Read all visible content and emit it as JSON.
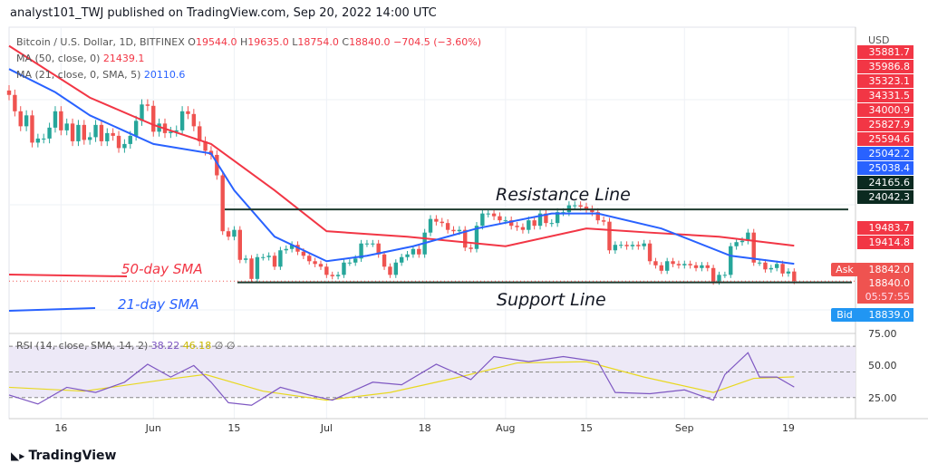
{
  "header": {
    "published": "analyst101_TWJ published on TradingView.com, Sep 20, 2022 14:00 UTC"
  },
  "legend": {
    "symbol": "Bitcoin / U.S. Dollar, 1D, BITFINEX",
    "open_label": "O",
    "open": "19544.0",
    "high_label": "H",
    "high": "19635.0",
    "low_label": "L",
    "low": "18754.0",
    "close_label": "C",
    "close": "18840.0",
    "change": "−704.5 (−3.60%)",
    "ma50_label": "MA (50, close, 0)",
    "ma50_value": "21439.1",
    "ma21_label": "MA (21, close, 0, SMA, 5)",
    "ma21_value": "20110.6",
    "rsi_label": "RSI (14, close, SMA, 14, 2)",
    "rsi_value": "38.22",
    "rsi_sma_value": "46.18",
    "rsi_extra": "∅  ∅"
  },
  "price_axis": {
    "currency": "USD",
    "labels": [
      {
        "text": "35881.7",
        "color": "#f23645"
      },
      {
        "text": "35986.8",
        "color": "#f23645"
      },
      {
        "text": "35323.1",
        "color": "#f23645"
      },
      {
        "text": "34331.5",
        "color": "#f23645"
      },
      {
        "text": "34000.9",
        "color": "#f23645"
      },
      {
        "text": "25827.9",
        "color": "#f23645"
      },
      {
        "text": "25594.6",
        "color": "#f23645"
      },
      {
        "text": "25042.2",
        "color": "#2962ff"
      },
      {
        "text": "25038.4",
        "color": "#2962ff"
      },
      {
        "text": "24165.6",
        "color": "#0b2a20"
      },
      {
        "text": "24042.3",
        "color": "#0b2a20"
      },
      {
        "text": "19483.7",
        "color": "#f23645"
      },
      {
        "text": "19414.8",
        "color": "#f23645"
      }
    ],
    "ask_label": "Ask",
    "ask": "18842.0",
    "last": "18840.0",
    "countdown": "05:57:55",
    "bid_label": "Bid",
    "bid": "18839.0",
    "rsi_ticks": [
      "75.00",
      "50.00",
      "25.00"
    ]
  },
  "annotations": {
    "resistance": "Resistance Line",
    "support": "Support Line",
    "sma50": "50-day SMA",
    "sma21": "21-day SMA"
  },
  "footer": {
    "brand": "TradingView"
  },
  "colors": {
    "up": "#26a69a",
    "down": "#ef5350",
    "ma50": "#f23645",
    "ma21": "#2962ff",
    "rsi": "#7e57c2",
    "rsi_sma": "#f5e642",
    "rsi_band": "#ede9f7"
  },
  "chart_data": {
    "type": "candlestick",
    "start_date": "2022-05-07",
    "x_ticks": [
      {
        "date": "2022-05-16",
        "label": "16"
      },
      {
        "date": "2022-06-01",
        "label": "Jun"
      },
      {
        "date": "2022-06-15",
        "label": "15"
      },
      {
        "date": "2022-07-01",
        "label": "Jul"
      },
      {
        "date": "2022-07-18",
        "label": "18"
      },
      {
        "date": "2022-08-01",
        "label": "Aug"
      },
      {
        "date": "2022-08-15",
        "label": "15"
      },
      {
        "date": "2022-09-01",
        "label": "Sep"
      },
      {
        "date": "2022-09-19",
        "label": "19"
      }
    ],
    "ylim": [
      15000,
      37470
    ],
    "closes": [
      32500,
      31300,
      30200,
      31000,
      29000,
      29300,
      29300,
      30100,
      31300,
      29900,
      30400,
      29100,
      30300,
      29200,
      29400,
      30300,
      29100,
      29700,
      29500,
      28600,
      28900,
      29500,
      30600,
      31800,
      31700,
      29800,
      30400,
      29700,
      29800,
      29900,
      31300,
      31100,
      30200,
      29100,
      28400,
      28100,
      26600,
      22500,
      22100,
      22600,
      20400,
      20500,
      19000,
      20600,
      20600,
      20700,
      19900,
      21100,
      21200,
      21500,
      21000,
      20700,
      20300,
      20100,
      19900,
      19300,
      19200,
      19300,
      20200,
      20200,
      20500,
      21600,
      21600,
      21600,
      20800,
      19900,
      19300,
      20200,
      20600,
      20800,
      21200,
      20800,
      22400,
      23400,
      23200,
      23100,
      22600,
      22500,
      22600,
      21300,
      21200,
      22900,
      23800,
      23800,
      23600,
      23300,
      23300,
      22900,
      22800,
      22600,
      23300,
      22900,
      23800,
      23100,
      23100,
      23900,
      23900,
      24400,
      24400,
      24300,
      24100,
      23900,
      23300,
      23200,
      21100,
      21500,
      21500,
      21400,
      21500,
      21400,
      21600,
      20300,
      20000,
      19600,
      20300,
      20100,
      20000,
      20100,
      20000,
      19800,
      20000,
      19800,
      18800,
      19300,
      19300,
      21400,
      21700,
      21800,
      22400,
      20200,
      20200,
      19700,
      19800,
      20100,
      19400,
      19544,
      18840
    ],
    "ma50": [
      [
        "2022-05-07",
        36100
      ],
      [
        "2022-05-21",
        32300
      ],
      [
        "2022-06-01",
        30300
      ],
      [
        "2022-06-11",
        28900
      ],
      [
        "2022-06-22",
        25500
      ],
      [
        "2022-07-01",
        22500
      ],
      [
        "2022-07-15",
        22100
      ],
      [
        "2022-08-01",
        21400
      ],
      [
        "2022-08-15",
        22700
      ],
      [
        "2022-08-26",
        22400
      ],
      [
        "2022-09-07",
        22100
      ],
      [
        "2022-09-20",
        21439.1
      ]
    ],
    "ma21": [
      [
        "2022-05-07",
        34400
      ],
      [
        "2022-05-15",
        32700
      ],
      [
        "2022-05-21",
        31000
      ],
      [
        "2022-06-01",
        28900
      ],
      [
        "2022-06-11",
        28200
      ],
      [
        "2022-06-15",
        25500
      ],
      [
        "2022-06-22",
        22100
      ],
      [
        "2022-07-01",
        20300
      ],
      [
        "2022-07-08",
        20700
      ],
      [
        "2022-07-16",
        21400
      ],
      [
        "2022-07-27",
        22700
      ],
      [
        "2022-08-09",
        23800
      ],
      [
        "2022-08-17",
        23800
      ],
      [
        "2022-08-28",
        22700
      ],
      [
        "2022-09-09",
        20700
      ],
      [
        "2022-09-20",
        20110.6
      ]
    ],
    "rsi_ylim": [
      15,
      80
    ],
    "rsi": [
      [
        "2022-05-07",
        32
      ],
      [
        "2022-05-12",
        25
      ],
      [
        "2022-05-17",
        38
      ],
      [
        "2022-05-22",
        34
      ],
      [
        "2022-05-27",
        42
      ],
      [
        "2022-05-31",
        56
      ],
      [
        "2022-06-04",
        46
      ],
      [
        "2022-06-08",
        55
      ],
      [
        "2022-06-11",
        42
      ],
      [
        "2022-06-14",
        26
      ],
      [
        "2022-06-18",
        24
      ],
      [
        "2022-06-23",
        38
      ],
      [
        "2022-06-28",
        32
      ],
      [
        "2022-07-02",
        28
      ],
      [
        "2022-07-09",
        42
      ],
      [
        "2022-07-14",
        40
      ],
      [
        "2022-07-20",
        56
      ],
      [
        "2022-07-26",
        44
      ],
      [
        "2022-07-30",
        62
      ],
      [
        "2022-08-05",
        58
      ],
      [
        "2022-08-11",
        62
      ],
      [
        "2022-08-17",
        58
      ],
      [
        "2022-08-20",
        34
      ],
      [
        "2022-08-26",
        33
      ],
      [
        "2022-09-01",
        36
      ],
      [
        "2022-09-06",
        28
      ],
      [
        "2022-09-08",
        48
      ],
      [
        "2022-09-12",
        65
      ],
      [
        "2022-09-14",
        46
      ],
      [
        "2022-09-17",
        46
      ],
      [
        "2022-09-20",
        38.22
      ]
    ],
    "rsi_sma": [
      [
        "2022-05-07",
        38
      ],
      [
        "2022-05-20",
        35
      ],
      [
        "2022-06-03",
        44
      ],
      [
        "2022-06-10",
        48
      ],
      [
        "2022-06-20",
        35
      ],
      [
        "2022-07-01",
        28
      ],
      [
        "2022-07-12",
        34
      ],
      [
        "2022-07-24",
        46
      ],
      [
        "2022-08-03",
        57
      ],
      [
        "2022-08-15",
        58
      ],
      [
        "2022-08-25",
        46
      ],
      [
        "2022-09-06",
        34
      ],
      [
        "2022-09-13",
        45
      ],
      [
        "2022-09-20",
        46.18
      ]
    ],
    "resistance_level": 24100,
    "support_level": 18750
  }
}
